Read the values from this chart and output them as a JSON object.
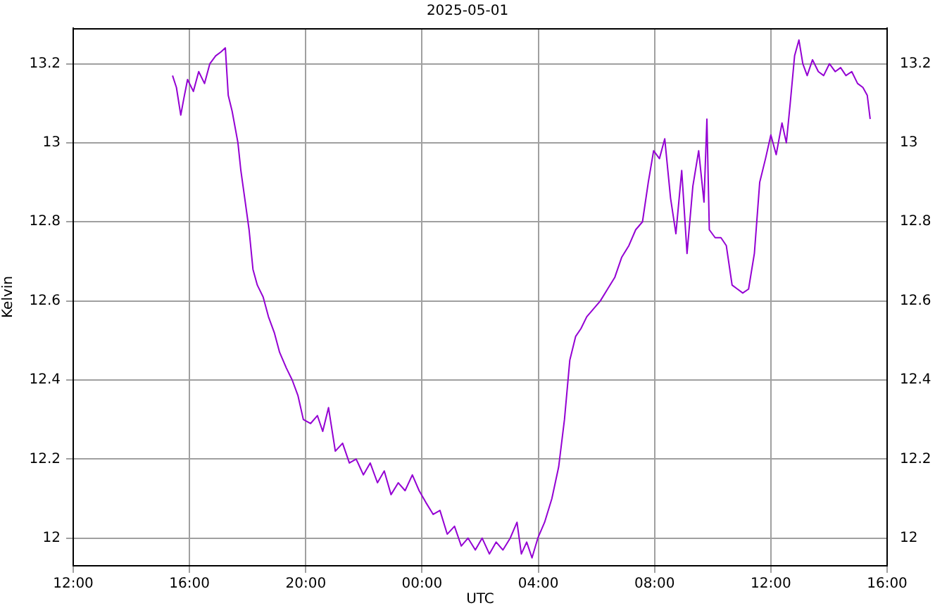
{
  "chart_data": {
    "type": "line",
    "title": "2025-05-01",
    "xlabel": "UTC",
    "ylabel": "Kelvin",
    "xlim": [
      "2025-05-01T12:00",
      "2025-05-02T16:00"
    ],
    "xticks": [
      {
        "value": "2025-05-01T12:00",
        "label": "12:00"
      },
      {
        "value": "2025-05-01T16:00",
        "label": "16:00"
      },
      {
        "value": "2025-05-01T20:00",
        "label": "20:00"
      },
      {
        "value": "2025-05-02T00:00",
        "label": "00:00"
      },
      {
        "value": "2025-05-02T04:00",
        "label": "04:00"
      },
      {
        "value": "2025-05-02T08:00",
        "label": "08:00"
      },
      {
        "value": "2025-05-02T12:00",
        "label": "12:00"
      },
      {
        "value": "2025-05-02T16:00",
        "label": "16:00"
      }
    ],
    "ylim": [
      11.93,
      13.29
    ],
    "yticks": [
      12,
      12.2,
      12.4,
      12.6,
      12.8,
      13,
      13.2
    ],
    "y2lim": [
      11.93,
      13.29
    ],
    "y2ticks": [
      12,
      12.2,
      12.4,
      12.6,
      12.8,
      13,
      13.2
    ],
    "grid": true,
    "legend": false,
    "marker": "none",
    "line_style": "solid",
    "x": [
      "2025-05-01T15:25",
      "2025-05-01T15:33",
      "2025-05-01T15:42",
      "2025-05-01T15:48",
      "2025-05-01T15:56",
      "2025-05-01T16:08",
      "2025-05-01T16:19",
      "2025-05-01T16:31",
      "2025-05-01T16:42",
      "2025-05-01T16:54",
      "2025-05-01T17:05",
      "2025-05-01T17:14",
      "2025-05-01T17:20",
      "2025-05-01T17:28",
      "2025-05-01T17:40",
      "2025-05-01T17:46",
      "2025-05-01T17:54",
      "2025-05-01T18:03",
      "2025-05-01T18:11",
      "2025-05-01T18:20",
      "2025-05-01T18:32",
      "2025-05-01T18:43",
      "2025-05-01T18:55",
      "2025-05-01T19:06",
      "2025-05-01T19:20",
      "2025-05-01T19:32",
      "2025-05-01T19:44",
      "2025-05-01T19:55",
      "2025-05-01T20:10",
      "2025-05-01T20:24",
      "2025-05-01T20:35",
      "2025-05-01T20:47",
      "2025-05-01T21:01",
      "2025-05-01T21:16",
      "2025-05-01T21:30",
      "2025-05-01T21:44",
      "2025-05-01T21:59",
      "2025-05-01T22:13",
      "2025-05-01T22:28",
      "2025-05-01T22:42",
      "2025-05-01T22:56",
      "2025-05-01T23:11",
      "2025-05-01T23:25",
      "2025-05-01T23:40",
      "2025-05-01T23:54",
      "2025-05-02T00:08",
      "2025-05-02T00:23",
      "2025-05-02T00:37",
      "2025-05-02T00:52",
      "2025-05-02T01:07",
      "2025-05-02T01:21",
      "2025-05-02T01:35",
      "2025-05-02T01:50",
      "2025-05-02T02:04",
      "2025-05-02T02:19",
      "2025-05-02T02:33",
      "2025-05-02T02:47",
      "2025-05-02T03:02",
      "2025-05-02T03:16",
      "2025-05-02T03:25",
      "2025-05-02T03:36",
      "2025-05-02T03:47",
      "2025-05-02T03:59",
      "2025-05-02T04:13",
      "2025-05-02T04:28",
      "2025-05-02T04:42",
      "2025-05-02T04:54",
      "2025-05-02T05:05",
      "2025-05-02T05:17",
      "2025-05-02T05:28",
      "2025-05-02T05:40",
      "2025-05-02T05:54",
      "2025-05-02T06:08",
      "2025-05-02T06:23",
      "2025-05-02T06:38",
      "2025-05-02T06:52",
      "2025-05-02T07:07",
      "2025-05-02T07:21",
      "2025-05-02T07:35",
      "2025-05-02T07:47",
      "2025-05-02T07:58",
      "2025-05-02T08:10",
      "2025-05-02T08:21",
      "2025-05-02T08:33",
      "2025-05-02T08:44",
      "2025-05-02T08:56",
      "2025-05-02T09:07",
      "2025-05-02T09:19",
      "2025-05-02T09:31",
      "2025-05-02T09:42",
      "2025-05-02T09:48",
      "2025-05-02T09:53",
      "2025-05-02T10:05",
      "2025-05-02T10:17",
      "2025-05-02T10:28",
      "2025-05-02T10:40",
      "2025-05-02T10:51",
      "2025-05-02T11:02",
      "2025-05-02T11:14",
      "2025-05-02T11:26",
      "2025-05-02T11:37",
      "2025-05-02T11:49",
      "2025-05-02T12:00",
      "2025-05-02T12:11",
      "2025-05-02T12:23",
      "2025-05-02T12:32",
      "2025-05-02T12:40",
      "2025-05-02T12:49",
      "2025-05-02T12:58",
      "2025-05-02T13:06",
      "2025-05-02T13:15",
      "2025-05-02T13:26",
      "2025-05-02T13:38",
      "2025-05-02T13:49",
      "2025-05-02T14:01",
      "2025-05-02T14:13",
      "2025-05-02T14:24",
      "2025-05-02T14:35",
      "2025-05-02T14:47",
      "2025-05-02T14:59",
      "2025-05-02T15:10",
      "2025-05-02T15:19",
      "2025-05-02T15:25"
    ],
    "series": [
      {
        "color": "#9400d3",
        "values": [
          13.17,
          13.14,
          13.07,
          13.11,
          13.16,
          13.13,
          13.18,
          13.15,
          13.2,
          13.22,
          13.23,
          13.24,
          13.12,
          13.08,
          13.0,
          12.93,
          12.86,
          12.78,
          12.68,
          12.64,
          12.61,
          12.56,
          12.52,
          12.47,
          12.43,
          12.4,
          12.36,
          12.3,
          12.29,
          12.31,
          12.27,
          12.33,
          12.22,
          12.24,
          12.19,
          12.2,
          12.16,
          12.19,
          12.14,
          12.17,
          12.11,
          12.14,
          12.12,
          12.16,
          12.12,
          12.09,
          12.06,
          12.07,
          12.01,
          12.03,
          11.98,
          12.0,
          11.97,
          12.0,
          11.96,
          11.99,
          11.97,
          12.0,
          12.04,
          11.96,
          11.99,
          11.95,
          12.0,
          12.04,
          12.1,
          12.18,
          12.3,
          12.45,
          12.51,
          12.53,
          12.56,
          12.58,
          12.6,
          12.63,
          12.66,
          12.71,
          12.74,
          12.78,
          12.8,
          12.9,
          12.98,
          12.96,
          13.01,
          12.86,
          12.77,
          12.93,
          12.72,
          12.89,
          12.98,
          12.85,
          13.06,
          12.78,
          12.76,
          12.76,
          12.74,
          12.64,
          12.63,
          12.62,
          12.63,
          12.72,
          12.9,
          12.96,
          13.02,
          12.97,
          13.05,
          13.0,
          13.1,
          13.22,
          13.26,
          13.2,
          13.17,
          13.21,
          13.18,
          13.17,
          13.2,
          13.18,
          13.19,
          13.17,
          13.18,
          13.15,
          13.14,
          13.12,
          13.06
        ]
      }
    ]
  }
}
